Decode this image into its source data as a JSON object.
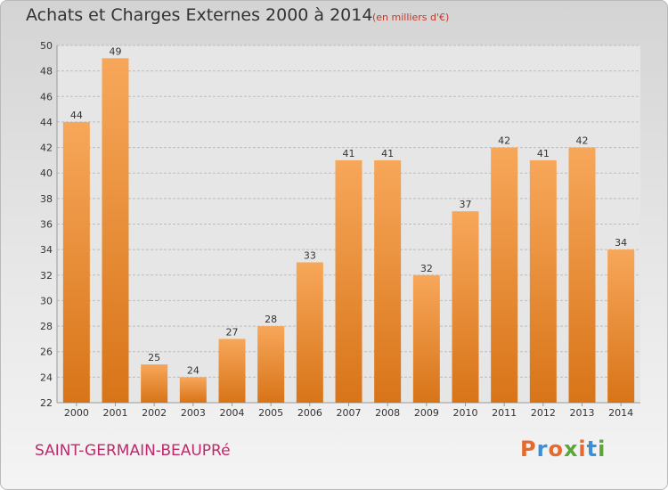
{
  "header": {
    "title": "Achats et Charges Externes 2000 à 2014",
    "subtitle": "(en milliers d'€)"
  },
  "footer": {
    "commune": "SAINT-GERMAIN-BEAUPRé",
    "logo_text": "Proxiti",
    "logo_colors": [
      "#e8692e",
      "#3b8fd9",
      "#e8692e",
      "#5aa63a",
      "#e8692e",
      "#3b8fd9",
      "#5aa63a"
    ]
  },
  "colors": {
    "bar_top": "#f7a75a",
    "bar_bottom": "#d87418",
    "grid": "#bdbdbd",
    "text": "#333333"
  },
  "chart_data": {
    "type": "bar",
    "categories": [
      "2000",
      "2001",
      "2002",
      "2003",
      "2004",
      "2005",
      "2006",
      "2007",
      "2008",
      "2009",
      "2010",
      "2011",
      "2012",
      "2013",
      "2014"
    ],
    "values": [
      44,
      49,
      25,
      24,
      27,
      28,
      33,
      41,
      41,
      32,
      37,
      42,
      41,
      42,
      34
    ],
    "ylim": [
      22,
      50
    ],
    "yticks": [
      22,
      24,
      26,
      28,
      30,
      32,
      34,
      36,
      38,
      40,
      42,
      44,
      46,
      48,
      50
    ],
    "grid": true,
    "data_labels": true
  }
}
